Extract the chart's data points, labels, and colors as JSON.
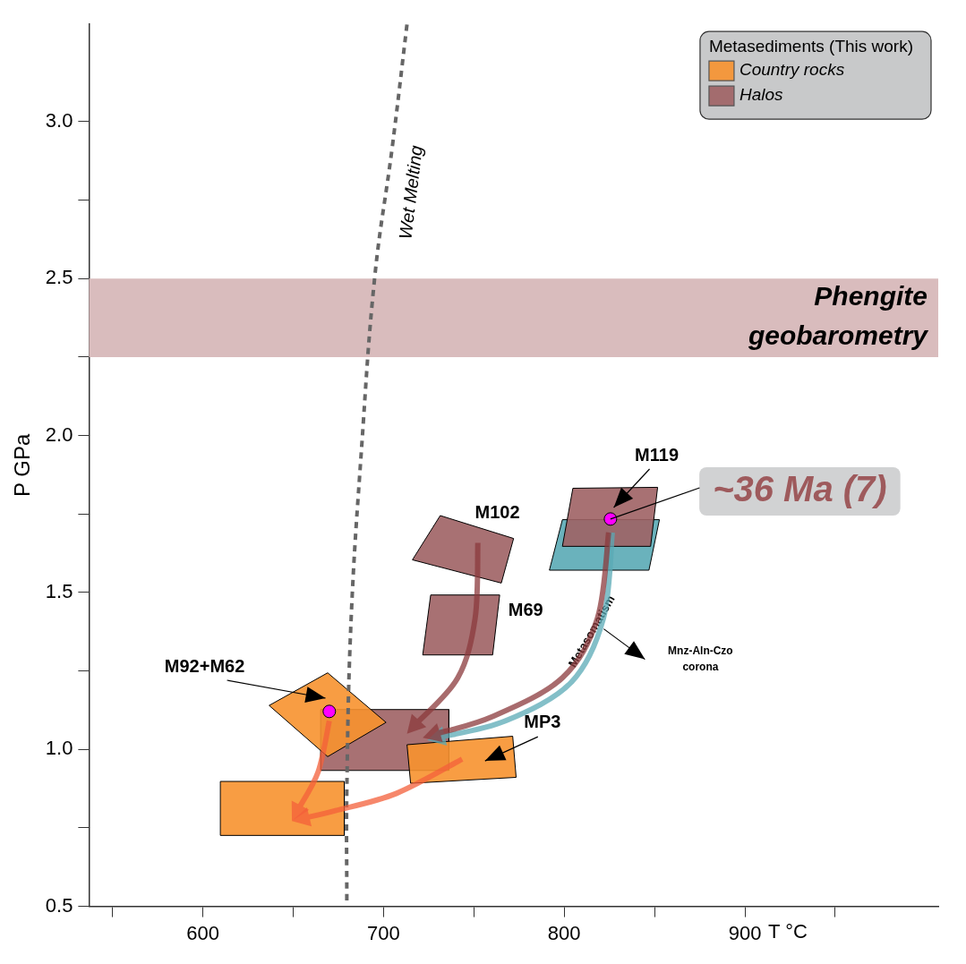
{
  "chart_data": {
    "type": "area",
    "xlabel": "T °C",
    "ylabel": "P GPa",
    "legend_title": "Metasediments (This work)",
    "legend": "top right",
    "grid": false,
    "xlim": [
      537,
      1007
    ],
    "xticks": [
      {
        "value": 550,
        "label": null
      },
      600,
      {
        "value": 650,
        "label": null
      },
      700,
      {
        "value": 750,
        "label": null
      },
      800,
      {
        "value": 850,
        "label": null
      },
      900,
      {
        "value": 950,
        "label": null
      }
    ],
    "ylim": [
      0.5,
      3.31
    ],
    "yticks": [
      {
        "value": 0.5,
        "label": "0.5"
      },
      {
        "value": 0.75,
        "label": null
      },
      {
        "value": 1,
        "label": "1.0"
      },
      {
        "value": 1.25,
        "label": null
      },
      {
        "value": 1.5,
        "label": "1.5"
      },
      {
        "value": 1.75,
        "label": null
      },
      {
        "value": 2,
        "label": "2.0"
      },
      {
        "value": 2.25,
        "label": null
      },
      {
        "value": 2.5,
        "label": "2.5"
      },
      {
        "value": 2.75,
        "label": null
      },
      {
        "value": 3,
        "label": "3.0"
      }
    ],
    "bands": [
      {
        "axis": "y",
        "from": 2.25,
        "to": 2.5,
        "label": "Phengite geobarometry",
        "color": "#d9bcbd"
      }
    ],
    "series": [
      {
        "color": "#5aaab5",
        "x": [
          799,
          852.7,
          846.9,
          791.8,
          799
        ],
        "values": [
          1.732,
          1.732,
          1.571,
          1.571,
          1.732
        ]
      },
      {
        "name": "Country rocks",
        "color": "#f7922f",
        "x": [
          609.7,
          678.3,
          678.3,
          609.7,
          609.7
        ],
        "values": [
          0.898,
          0.898,
          0.726,
          0.726,
          0.898
        ]
      },
      {
        "name": "Halos",
        "color": "#9e6264",
        "x": [
          804.8,
          851.7,
          847.8,
          799,
          804.8
        ],
        "values": [
          1.832,
          1.835,
          1.647,
          1.647,
          1.832
        ]
      },
      {
        "color": "#9e6264",
        "x": [
          731.4,
          772,
          765.2,
          716,
          731.4
        ],
        "values": [
          1.745,
          1.672,
          1.53,
          1.604,
          1.745
        ]
      },
      {
        "color": "#9e6264",
        "x": [
          726.1,
          764.3,
          760.4,
          721.7,
          726.1
        ],
        "values": [
          1.492,
          1.492,
          1.301,
          1.301,
          1.492
        ]
      },
      {
        "color": "#9e6264",
        "x": [
          665.2,
          736.2,
          736.2,
          665.2,
          665.2
        ],
        "values": [
          1.127,
          1.127,
          0.933,
          0.933,
          1.127
        ]
      },
      {
        "color": "#f7922f",
        "x": [
          636.7,
          669.1,
          701.4,
          669.1,
          636.7
        ],
        "values": [
          1.14,
          1.244,
          1.086,
          0.977,
          1.14
        ]
      },
      {
        "color": "#f7922f",
        "x": [
          713,
          771.5,
          773.4,
          715,
          713
        ],
        "values": [
          1.015,
          1.042,
          0.911,
          0.892,
          1.015
        ]
      },
      {
        "type": "line",
        "name": "Wet Melting",
        "color": "#666666",
        "line_style": "dashed",
        "x": [
          679.7,
          679.7,
          682.1,
          687.9,
          695.2,
          704.8,
          713
        ],
        "values": [
          0.519,
          0.873,
          1.418,
          1.963,
          2.508,
          2.917,
          3.31
        ]
      },
      {
        "type": "scatter",
        "color": "#ff00ff",
        "marker": "circle",
        "x": [
          825.6,
          670
        ],
        "values": [
          1.734,
          1.121
        ]
      }
    ],
    "annotations": [
      "M119",
      "M102",
      "M69",
      "M92+M62",
      "MP3",
      {
        "text": "~36 Ma (7)",
        "x": 825.6,
        "y": 1.734
      },
      "Metasomatism",
      "Mnz-Aln-Czo corona"
    ]
  }
}
